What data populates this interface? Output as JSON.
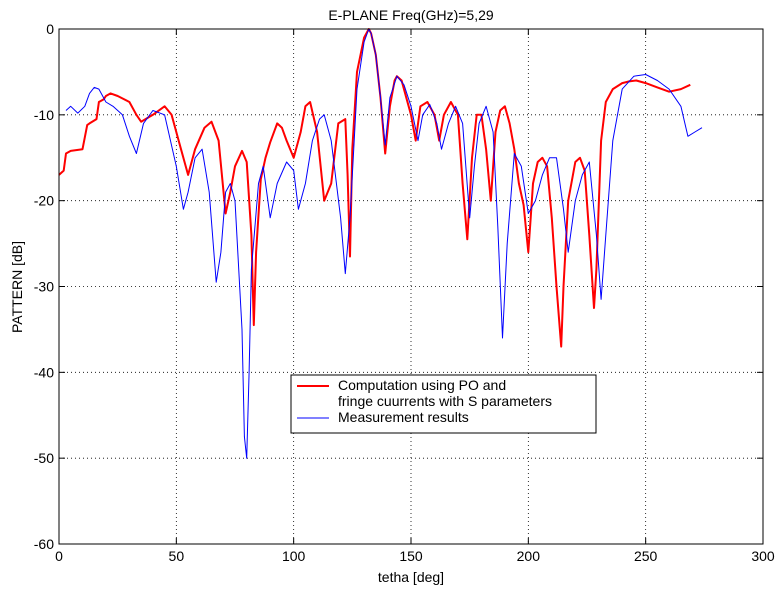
{
  "chart_data": {
    "type": "line",
    "title": "E-PLANE Freq(GHz)=5,29",
    "xlabel": "tetha [deg]",
    "ylabel": "PATTERN [dB]",
    "xlim": [
      0,
      300
    ],
    "ylim": [
      -60,
      0
    ],
    "xticks": [
      0,
      50,
      100,
      150,
      200,
      250,
      300
    ],
    "yticks": [
      0,
      -10,
      -20,
      -30,
      -40,
      -50,
      -60
    ],
    "xtick_labels": [
      "0",
      "50",
      "100",
      "150",
      "200",
      "250",
      "300"
    ],
    "ytick_labels": [
      "0",
      "-10",
      "-20",
      "-30",
      "-40",
      "-50",
      "-60"
    ],
    "grid": true,
    "legend_position": "lower-center",
    "series": [
      {
        "name": "Computation using PO and\nfringe cuurrents with S parameters",
        "legend_lines": [
          "Computation using PO and",
          "fringe cuurrents with S parameters"
        ],
        "color": "#ff0000",
        "x": [
          0,
          2,
          3,
          5,
          10,
          12,
          13,
          16,
          17,
          19,
          20,
          22,
          25,
          30,
          33,
          35,
          40,
          45,
          48,
          52,
          55,
          58,
          62,
          65,
          68,
          71,
          73,
          75,
          78,
          80,
          82,
          83,
          84,
          86,
          88,
          90,
          93,
          95,
          97,
          100,
          103,
          105,
          107,
          110,
          113,
          116,
          119,
          122,
          123,
          124,
          125,
          127,
          130,
          132,
          133,
          135,
          137,
          139,
          141,
          143,
          144,
          146,
          148,
          150,
          152,
          154,
          157,
          160,
          162,
          164,
          167,
          170,
          172,
          174,
          176,
          178,
          180,
          182,
          184,
          186,
          188,
          190,
          192,
          194,
          196,
          198,
          200,
          201,
          202,
          204,
          206,
          208,
          210,
          212,
          214,
          215,
          217,
          220,
          222,
          224,
          226,
          228,
          229,
          231,
          233,
          236,
          240,
          243,
          246,
          250,
          255,
          260,
          265,
          269
        ],
        "y": [
          -17,
          -16.5,
          -14.5,
          -14.2,
          -14,
          -11.2,
          -11,
          -10.5,
          -8.5,
          -8.2,
          -7.8,
          -7.5,
          -7.8,
          -8.5,
          -10,
          -10.8,
          -10,
          -9,
          -10,
          -14,
          -17,
          -14,
          -11.5,
          -10.8,
          -13,
          -21.5,
          -19,
          -16,
          -14.2,
          -15.5,
          -24,
          -34.5,
          -26,
          -17.5,
          -15,
          -13.2,
          -11,
          -11.5,
          -13,
          -15,
          -12,
          -9,
          -8.5,
          -12,
          -20,
          -18,
          -11,
          -10.5,
          -17,
          -26.5,
          -14,
          -5,
          -1,
          0,
          -0.5,
          -3,
          -8,
          -14.5,
          -9,
          -6,
          -5.5,
          -6,
          -8,
          -10,
          -13,
          -9,
          -8.5,
          -10,
          -13,
          -10,
          -8.5,
          -10,
          -18,
          -24.5,
          -15,
          -10,
          -10,
          -14,
          -20,
          -12,
          -9.5,
          -9,
          -11,
          -14,
          -18,
          -20.5,
          -26,
          -22,
          -18,
          -15.5,
          -15,
          -16,
          -22,
          -30,
          -37,
          -30,
          -20,
          -15.5,
          -15,
          -16.5,
          -24,
          -32.5,
          -28,
          -13,
          -8.5,
          -7,
          -6.3,
          -6.1,
          -6,
          -6.3,
          -6.8,
          -7.3,
          -7.0,
          -6.5
        ]
      },
      {
        "name": "Measurement results",
        "legend_lines": [
          "Measurement results"
        ],
        "color": "#0000ff",
        "x": [
          3,
          5,
          8,
          11,
          13,
          15,
          17,
          20,
          23,
          27,
          30,
          33,
          36,
          40,
          45,
          50,
          53,
          55,
          58,
          61,
          64,
          67,
          69,
          71,
          73,
          75,
          78,
          79,
          80,
          81,
          82,
          85,
          87,
          90,
          93,
          97,
          100,
          102,
          105,
          108,
          111,
          113,
          116,
          120,
          122,
          124,
          127,
          130,
          132,
          133,
          135,
          137,
          139,
          141,
          144,
          147,
          150,
          153,
          155,
          158,
          161,
          163,
          166,
          169,
          172,
          175,
          177,
          179,
          182,
          185,
          187,
          189,
          191,
          194,
          197,
          200,
          203,
          206,
          209,
          212,
          215,
          217,
          220,
          223,
          226,
          229,
          231,
          233,
          236,
          240,
          245,
          250,
          255,
          260,
          265,
          268,
          271,
          274
        ],
        "y": [
          -9.5,
          -9,
          -9.8,
          -9,
          -7.5,
          -6.8,
          -7,
          -8.5,
          -9,
          -10,
          -12.5,
          -14.5,
          -11,
          -9.5,
          -10,
          -16,
          -21,
          -19,
          -15,
          -14,
          -19,
          -29.5,
          -26,
          -19,
          -18,
          -20,
          -35,
          -47.5,
          -50,
          -40,
          -28,
          -18,
          -16,
          -22,
          -18,
          -15.5,
          -16.5,
          -21,
          -18,
          -13,
          -10.5,
          -10,
          -13,
          -22,
          -28.5,
          -22,
          -7,
          -1.5,
          0,
          -0.5,
          -3,
          -8,
          -13.5,
          -8,
          -5.5,
          -6.5,
          -9,
          -13,
          -10,
          -8.8,
          -11,
          -14,
          -11,
          -9,
          -11,
          -22,
          -16,
          -11,
          -9,
          -12,
          -23,
          -36,
          -25,
          -14.5,
          -16,
          -21.5,
          -20,
          -17,
          -15,
          -15,
          -21,
          -26,
          -20,
          -17,
          -15.5,
          -24,
          -31.5,
          -24,
          -13,
          -7,
          -5.5,
          -5.3,
          -6,
          -7,
          -9,
          -12.5,
          -12,
          -11.5
        ]
      }
    ]
  }
}
